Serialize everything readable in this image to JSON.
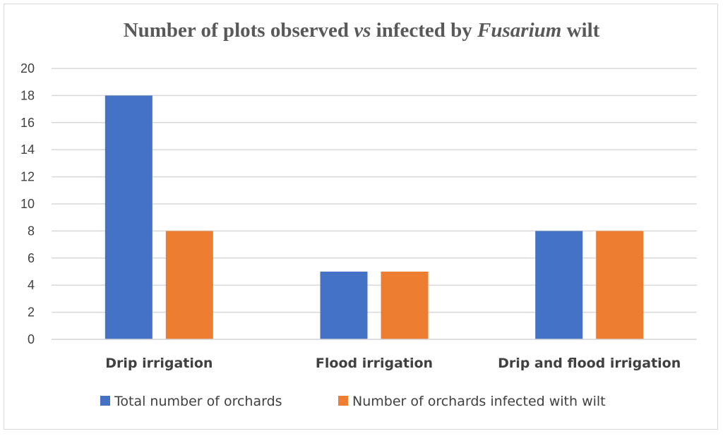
{
  "chart_data": {
    "type": "bar",
    "title_parts": [
      {
        "text": "Number of plots observed ",
        "italic": false
      },
      {
        "text": "vs",
        "italic": true
      },
      {
        "text": " infected by ",
        "italic": false
      },
      {
        "text": "Fusarium",
        "italic": true
      },
      {
        "text": " wilt",
        "italic": false
      }
    ],
    "categories": [
      "Drip irrigation",
      "Flood irrigation",
      "Drip and flood irrigation"
    ],
    "series": [
      {
        "name": "Total number of orchards",
        "values": [
          18,
          5,
          8
        ],
        "color": "#4472c4"
      },
      {
        "name": "Number of orchards infected with wilt",
        "values": [
          8,
          5,
          8
        ],
        "color": "#ed7d31"
      }
    ],
    "ylim": [
      0,
      20
    ],
    "yticks": [
      0,
      2,
      4,
      6,
      8,
      10,
      12,
      14,
      16,
      18,
      20
    ],
    "xlabel": "",
    "ylabel": "",
    "grid": true,
    "gridline_color": "#d9d9d9",
    "legend_position": "bottom"
  }
}
